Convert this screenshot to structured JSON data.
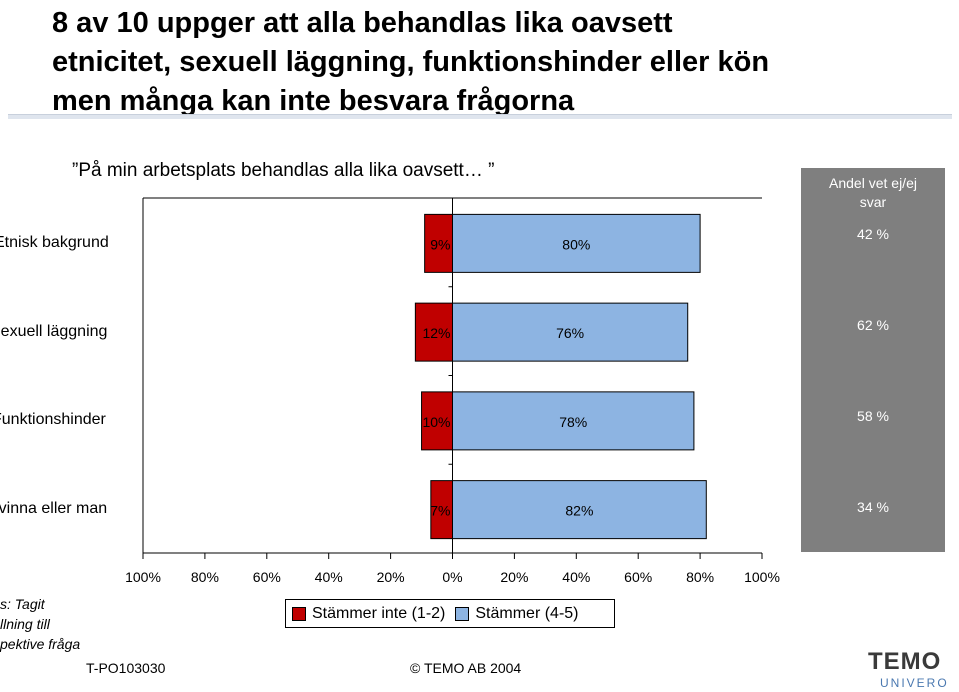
{
  "title_line1": "8 av 10 uppger att alla behandlas lika oavsett",
  "title_line2": "etnicitet, sexuell läggning, funktionshinder eller kön",
  "title_line3": "men många kan inte besvara frågorna",
  "subtitle": "”På min arbetsplats behandlas alla lika oavsett… ”",
  "panel": {
    "title_line1": "Andel vet ej/ej",
    "title_line2": "svar",
    "values": [
      "42 %",
      "62 %",
      "58 %",
      "34 %"
    ]
  },
  "notes": [
    "s: Tagit",
    "llning till",
    "pektive fråga"
  ],
  "footer": {
    "code": "T-PO103030",
    "copyright": "©  TEMO AB 2004",
    "logo": "TEMO",
    "logo_sub": "UNIVERO"
  },
  "colors": {
    "disagree": "#c00000",
    "agree": "#8db4e2",
    "panel": "#7f7f7f"
  },
  "chart_data": {
    "type": "bar",
    "orientation": "horizontal-diverging",
    "categories": [
      "Etnisk bakgrund",
      "Sexuell läggning",
      "Funktionshinder",
      "Kvinna eller man"
    ],
    "category_labels_visible": [
      "Etnisk bakgrund",
      "Sexuell läggning",
      "Funktionshinder",
      "Kvinna eller man"
    ],
    "series": [
      {
        "name": "Stämmer inte (1-2)",
        "values": [
          9,
          12,
          10,
          7
        ],
        "labels": [
          "9%",
          "12%",
          "10%",
          "7%"
        ]
      },
      {
        "name": "Stämmer (4-5)",
        "values": [
          80,
          76,
          78,
          82
        ],
        "labels": [
          "80%",
          "76%",
          "78%",
          "82%"
        ]
      }
    ],
    "xlim": [
      -100,
      100
    ],
    "tick_labels": [
      "100%",
      "80%",
      "60%",
      "40%",
      "20%",
      "0%",
      "20%",
      "40%",
      "60%",
      "80%",
      "100%"
    ],
    "legend": "bottom"
  }
}
